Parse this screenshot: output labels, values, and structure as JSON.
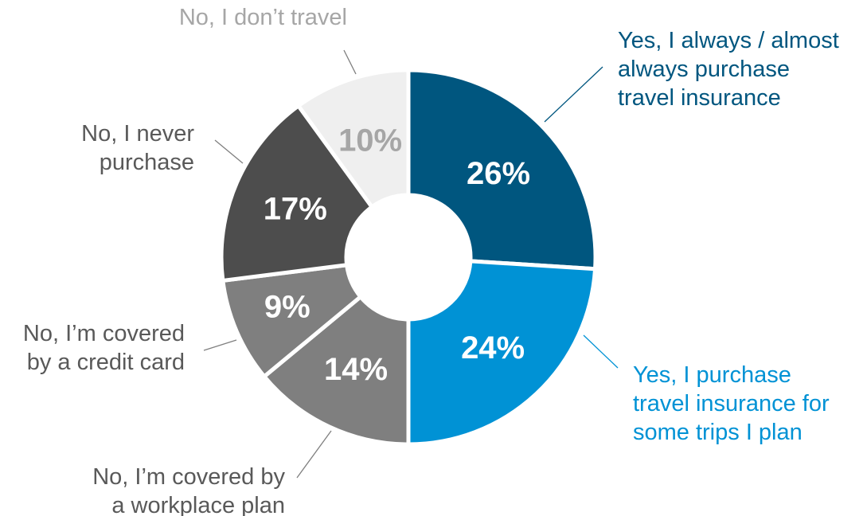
{
  "chart_data": {
    "type": "pie",
    "slices": [
      {
        "pct_label": "26%",
        "value": 26,
        "color": "#00567f",
        "pct_color": "#ffffff",
        "label_color": "#00567f",
        "label_lines": [
          "Yes, I always / almost",
          "always purchase",
          "travel insurance"
        ]
      },
      {
        "pct_label": "24%",
        "value": 24,
        "color": "#0092d5",
        "pct_color": "#ffffff",
        "label_color": "#0092d5",
        "label_lines": [
          "Yes, I purchase",
          "travel insurance for",
          "some trips I plan"
        ]
      },
      {
        "pct_label": "14%",
        "value": 14,
        "color": "#7f7f7f",
        "pct_color": "#ffffff",
        "label_color": "#595959",
        "label_lines": [
          "No, I’m covered by",
          "a workplace plan"
        ]
      },
      {
        "pct_label": "9%",
        "value": 9,
        "color": "#7f7f7f",
        "pct_color": "#ffffff",
        "label_color": "#595959",
        "label_lines": [
          "No, I’m covered",
          "by a credit card"
        ]
      },
      {
        "pct_label": "17%",
        "value": 17,
        "color": "#4d4d4d",
        "pct_color": "#ffffff",
        "label_color": "#595959",
        "label_lines": [
          "No, I never",
          "purchase"
        ]
      },
      {
        "pct_label": "10%",
        "value": 10,
        "color": "#efefef",
        "pct_color": "#a6a6a6",
        "label_color": "#a6a6a6",
        "label_lines": [
          "No, I don’t travel"
        ]
      }
    ]
  }
}
